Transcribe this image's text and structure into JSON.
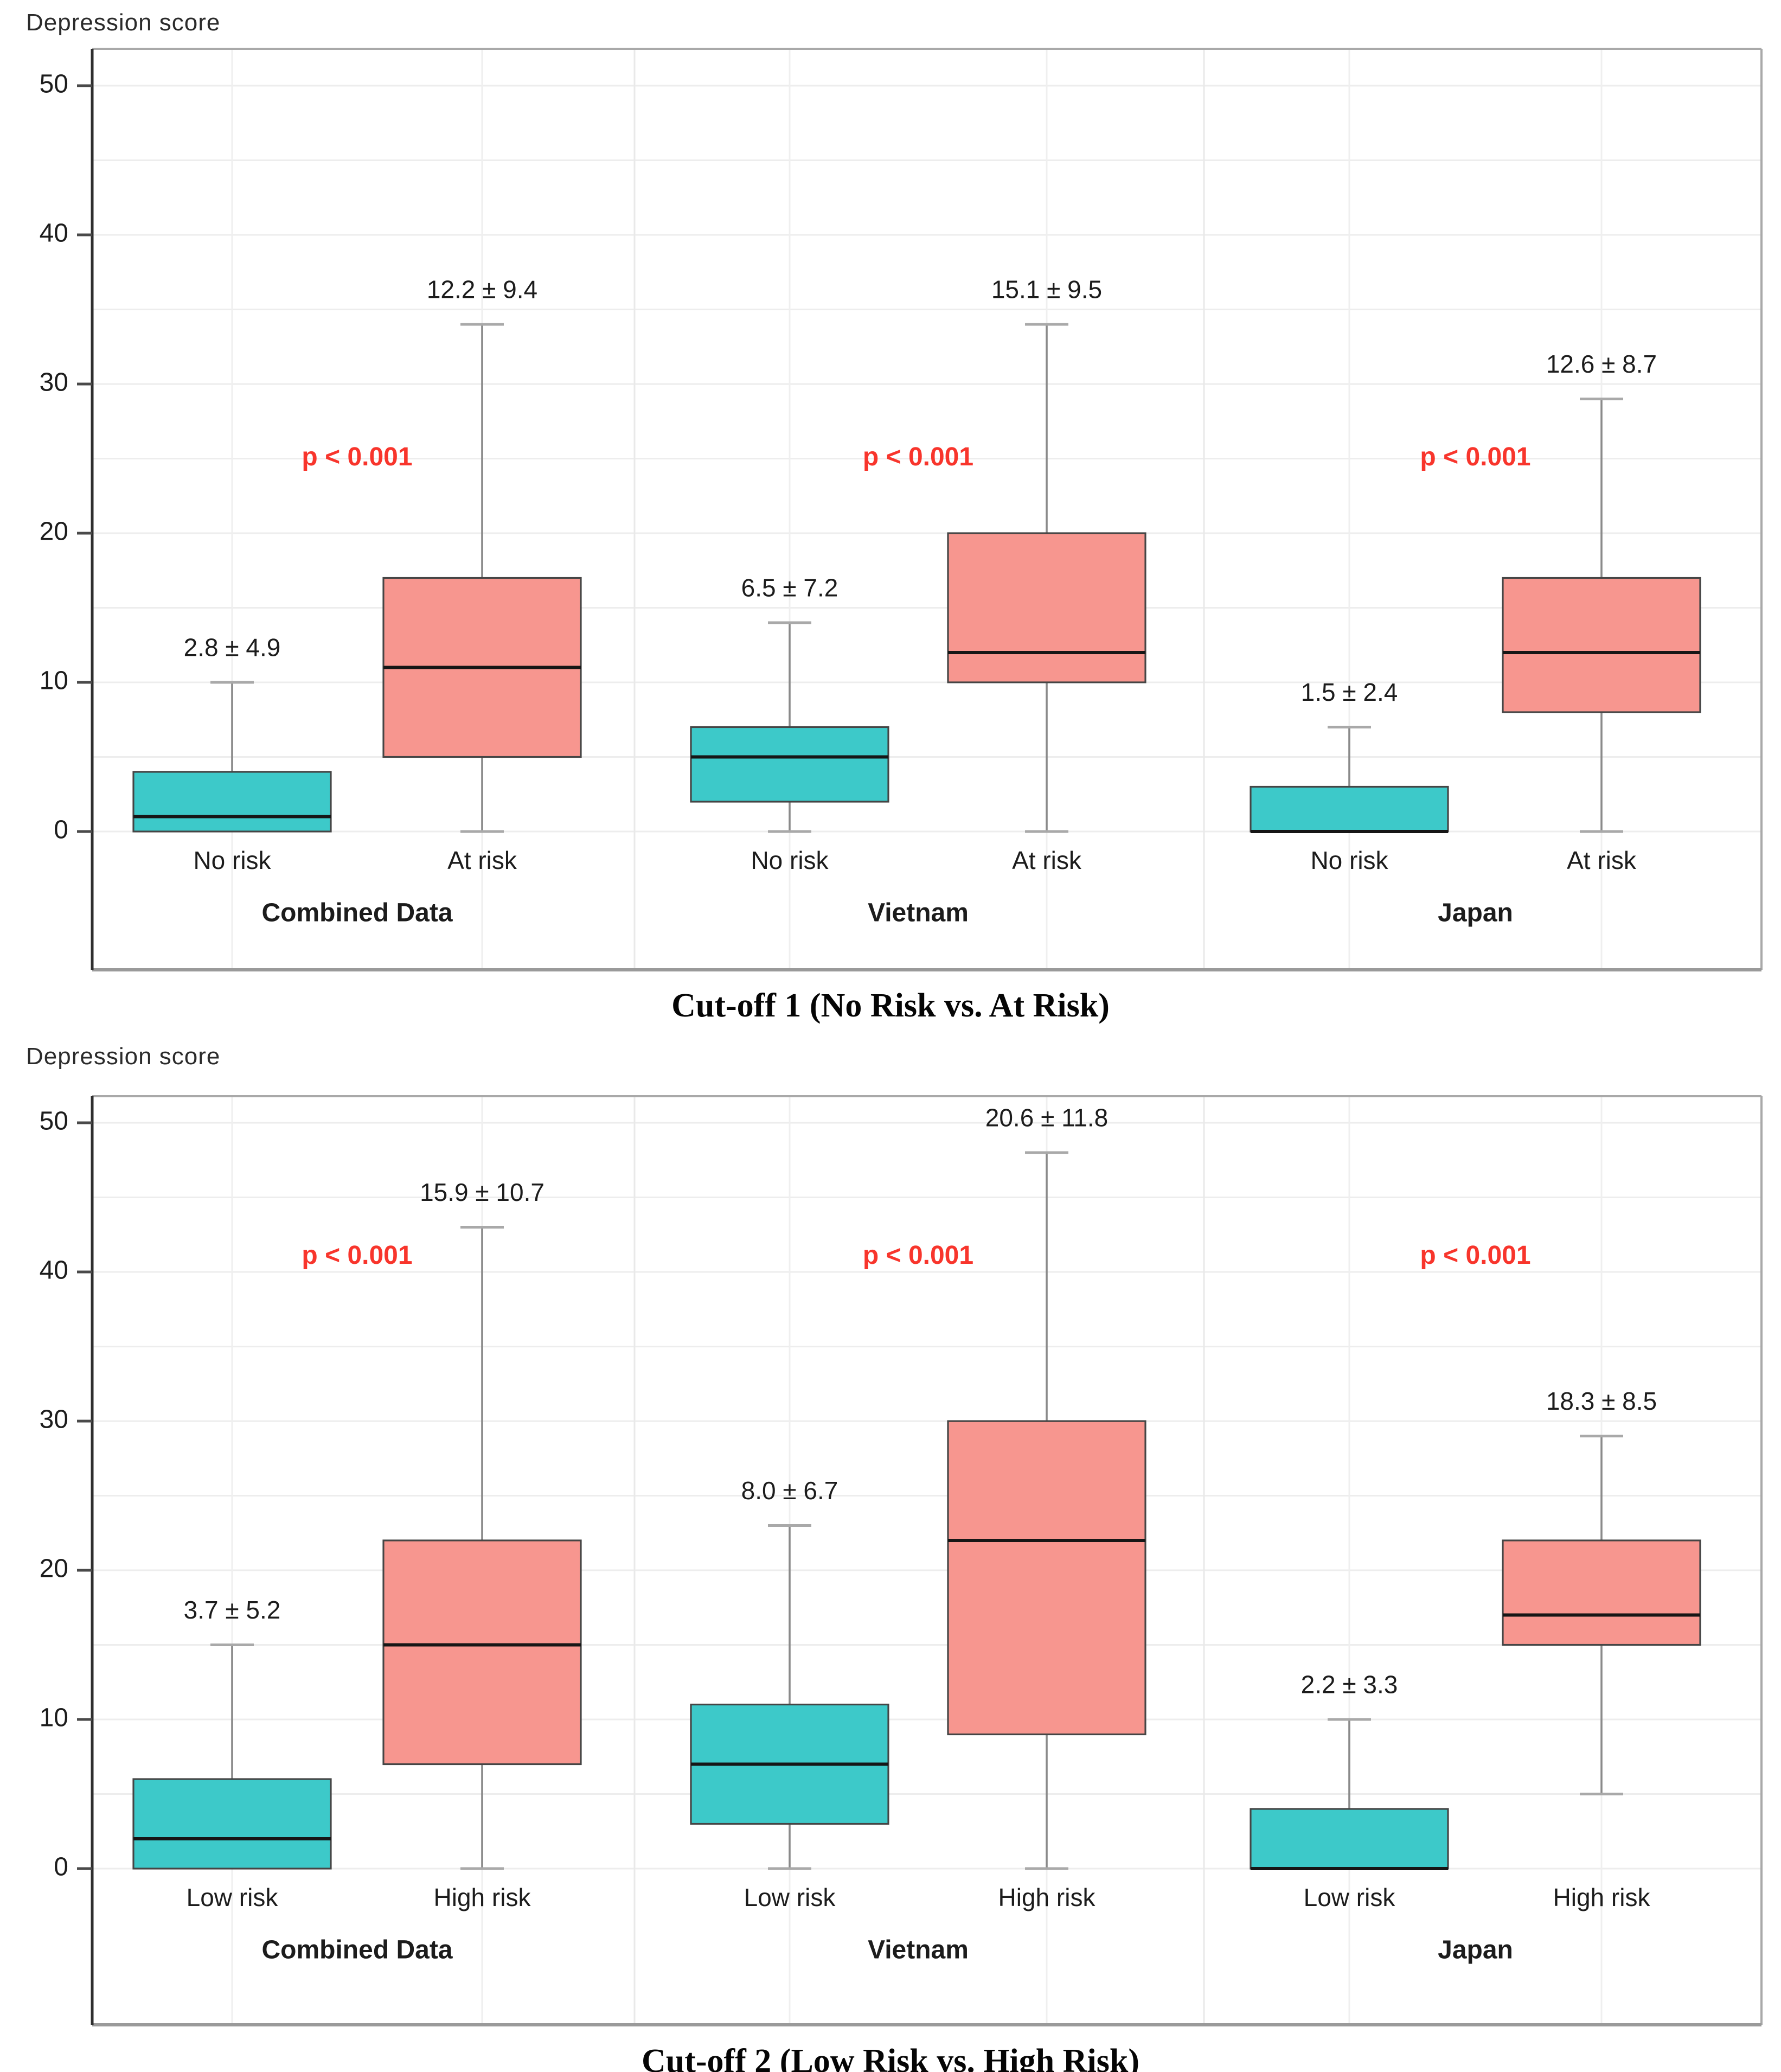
{
  "page": {
    "background": "#ffffff"
  },
  "colors": {
    "low_box_fill": "#3DC9C9",
    "high_box_fill": "#F7968F",
    "box_border": "#454545",
    "median_line": "#161616",
    "whisker": "#8a8a8a",
    "whisker_cap": "#a9a9a9",
    "p_value_text": "#F8352C",
    "text": "#1c1c1c",
    "grid_line": "#ededed",
    "category_grid_line": "#efefef",
    "facet_separator": "#e9e9e9",
    "panel_border": "#a9a9a9",
    "axis_line": "#2e2e2e"
  },
  "chart_data": [
    {
      "type": "box",
      "title": "Cut-off 1 (No Risk vs. At Risk)",
      "ylabel": "Depression score",
      "ylim": [
        0,
        50
      ],
      "yticks": [
        0,
        10,
        20,
        30,
        40,
        50
      ],
      "grid_step": 5,
      "legend_position": "none",
      "p_label_y": 25,
      "groups": [
        {
          "label": "Combined Data",
          "p_text": "p < 0.001",
          "boxes": [
            {
              "category": "No risk",
              "series": "low",
              "annotation": "2.8 ± 4.9",
              "whisker_low": 0,
              "q1": 0,
              "median": 1,
              "q3": 4,
              "whisker_high": 10
            },
            {
              "category": "At risk",
              "series": "high",
              "annotation": "12.2 ± 9.4",
              "whisker_low": 0,
              "q1": 5,
              "median": 11,
              "q3": 17,
              "whisker_high": 34
            }
          ]
        },
        {
          "label": "Vietnam",
          "p_text": "p < 0.001",
          "boxes": [
            {
              "category": "No risk",
              "series": "low",
              "annotation": "6.5 ± 7.2",
              "whisker_low": 0,
              "q1": 2,
              "median": 5,
              "q3": 7,
              "whisker_high": 14
            },
            {
              "category": "At risk",
              "series": "high",
              "annotation": "15.1 ± 9.5",
              "whisker_low": 0,
              "q1": 10,
              "median": 12,
              "q3": 20,
              "whisker_high": 34
            }
          ]
        },
        {
          "label": "Japan",
          "p_text": "p < 0.001",
          "boxes": [
            {
              "category": "No risk",
              "series": "low",
              "annotation": "1.5 ± 2.4",
              "whisker_low": 0,
              "q1": 0,
              "median": 0,
              "q3": 3,
              "whisker_high": 7
            },
            {
              "category": "At risk",
              "series": "high",
              "annotation": "12.6 ± 8.7",
              "whisker_low": 0,
              "q1": 8,
              "median": 12,
              "q3": 17,
              "whisker_high": 29
            }
          ]
        }
      ]
    },
    {
      "type": "box",
      "title": "Cut-off 2 (Low Risk vs. High Risk)",
      "ylabel": "Depression score",
      "ylim": [
        0,
        50
      ],
      "yticks": [
        0,
        10,
        20,
        30,
        40,
        50
      ],
      "grid_step": 5,
      "legend_position": "none",
      "p_label_y": 41,
      "groups": [
        {
          "label": "Combined Data",
          "p_text": "p < 0.001",
          "boxes": [
            {
              "category": "Low risk",
              "series": "low",
              "annotation": "3.7 ± 5.2",
              "whisker_low": 0,
              "q1": 0,
              "median": 2,
              "q3": 6,
              "whisker_high": 15
            },
            {
              "category": "High risk",
              "series": "high",
              "annotation": "15.9 ± 10.7",
              "whisker_low": 0,
              "q1": 7,
              "median": 15,
              "q3": 22,
              "whisker_high": 43
            }
          ]
        },
        {
          "label": "Vietnam",
          "p_text": "p < 0.001",
          "boxes": [
            {
              "category": "Low risk",
              "series": "low",
              "annotation": "8.0 ± 6.7",
              "whisker_low": 0,
              "q1": 3,
              "median": 7,
              "q3": 11,
              "whisker_high": 23
            },
            {
              "category": "High risk",
              "series": "high",
              "annotation": "20.6 ± 11.8",
              "whisker_low": 0,
              "q1": 9,
              "median": 22,
              "q3": 30,
              "whisker_high": 48
            }
          ]
        },
        {
          "label": "Japan",
          "p_text": "p < 0.001",
          "boxes": [
            {
              "category": "Low risk",
              "series": "low",
              "annotation": "2.2 ± 3.3",
              "whisker_low": 0,
              "q1": 0,
              "median": 0,
              "q3": 4,
              "whisker_high": 10
            },
            {
              "category": "High risk",
              "series": "high",
              "annotation": "18.3 ± 8.5",
              "whisker_low": 5,
              "q1": 15,
              "median": 17,
              "q3": 22,
              "whisker_high": 29
            }
          ]
        }
      ]
    }
  ]
}
